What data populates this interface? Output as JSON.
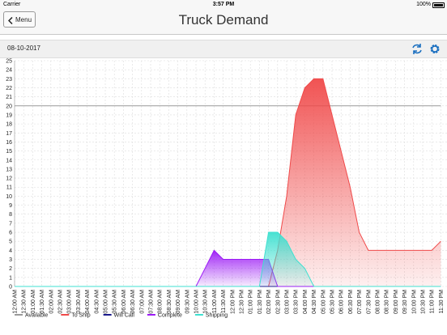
{
  "status": {
    "carrier": "Carrier",
    "time": "3:57 PM",
    "battery": "100%"
  },
  "nav": {
    "back": "Menu"
  },
  "toolbar": {
    "date": "08-10-2017"
  },
  "chart_data": {
    "type": "area",
    "title": "Truck Demand",
    "categories": [
      "12:00 AM",
      "12:30 AM",
      "01:00 AM",
      "01:30 AM",
      "02:00 AM",
      "02:30 AM",
      "03:00 AM",
      "03:30 AM",
      "04:00 AM",
      "04:30 AM",
      "05:00 AM",
      "05:30 AM",
      "06:00 AM",
      "06:30 AM",
      "07:00 AM",
      "07:30 AM",
      "08:00 AM",
      "08:30 AM",
      "09:00 AM",
      "09:30 AM",
      "10:00 AM",
      "10:30 AM",
      "11:00 AM",
      "11:30 AM",
      "12:00 PM",
      "12:30 PM",
      "01:00 PM",
      "01:30 PM",
      "02:00 PM",
      "02:30 PM",
      "03:00 PM",
      "03:30 PM",
      "04:00 PM",
      "04:30 PM",
      "05:00 PM",
      "05:30 PM",
      "06:00 PM",
      "06:30 PM",
      "07:00 PM",
      "07:30 PM",
      "08:00 PM",
      "08:30 PM",
      "09:00 PM",
      "09:30 PM",
      "10:00 PM",
      "10:30 PM",
      "11:00 PM",
      "11:30 PM"
    ],
    "series": [
      {
        "name": "Available",
        "color": "#9a9a9a",
        "fill": false,
        "values": [
          20,
          20,
          20,
          20,
          20,
          20,
          20,
          20,
          20,
          20,
          20,
          20,
          20,
          20,
          20,
          20,
          20,
          20,
          20,
          20,
          20,
          20,
          20,
          20,
          20,
          20,
          20,
          20,
          20,
          20,
          20,
          20,
          20,
          20,
          20,
          20,
          20,
          20,
          20,
          20,
          20,
          20,
          20,
          20,
          20,
          20,
          20,
          20
        ]
      },
      {
        "name": "To Ship",
        "color": "#f04a4a",
        "fill": true,
        "values": [
          0,
          0,
          0,
          0,
          0,
          0,
          0,
          0,
          0,
          0,
          0,
          0,
          0,
          0,
          0,
          0,
          0,
          0,
          0,
          0,
          0,
          0,
          0,
          0,
          0,
          0,
          0,
          0,
          0,
          4,
          10,
          19,
          22,
          23,
          23,
          19,
          15,
          11,
          6,
          4,
          4,
          4,
          4,
          4,
          4,
          4,
          4,
          5
        ]
      },
      {
        "name": "Will Call",
        "color": "#1a1a8c",
        "fill": false,
        "values": [
          0,
          0,
          0,
          0,
          0,
          0,
          0,
          0,
          0,
          0,
          0,
          0,
          0,
          0,
          0,
          0,
          0,
          0,
          0,
          0,
          0,
          0,
          0,
          0,
          0,
          0,
          0,
          0,
          0,
          0,
          0,
          0,
          0,
          0,
          0,
          0,
          0,
          0,
          0,
          0,
          0,
          0,
          0,
          0,
          0,
          0,
          0,
          0
        ]
      },
      {
        "name": "Complete",
        "color": "#9b19f5",
        "fill": true,
        "values": [
          0,
          0,
          0,
          0,
          0,
          0,
          0,
          0,
          0,
          0,
          0,
          0,
          0,
          0,
          0,
          0,
          0,
          0,
          0,
          0,
          0,
          2,
          4,
          3,
          3,
          3,
          3,
          3,
          3,
          0,
          0,
          0,
          0,
          0,
          0,
          0,
          0,
          0,
          0,
          0,
          0,
          0,
          0,
          0,
          0,
          0,
          0,
          0
        ]
      },
      {
        "name": "Shipping",
        "color": "#3fe0d0",
        "fill": true,
        "values": [
          0,
          0,
          0,
          0,
          0,
          0,
          0,
          0,
          0,
          0,
          0,
          0,
          0,
          0,
          0,
          0,
          0,
          0,
          0,
          0,
          0,
          0,
          0,
          0,
          0,
          0,
          0,
          0,
          6,
          6,
          5,
          3,
          2,
          0,
          0,
          0,
          0,
          0,
          0,
          0,
          0,
          0,
          0,
          0,
          0,
          0,
          0,
          0
        ]
      }
    ],
    "ylim": [
      0,
      25
    ],
    "yticks": [
      0,
      1,
      2,
      3,
      4,
      5,
      6,
      7,
      8,
      9,
      10,
      11,
      12,
      13,
      14,
      15,
      16,
      17,
      18,
      19,
      20,
      21,
      22,
      23,
      24,
      25
    ],
    "grid": true
  }
}
